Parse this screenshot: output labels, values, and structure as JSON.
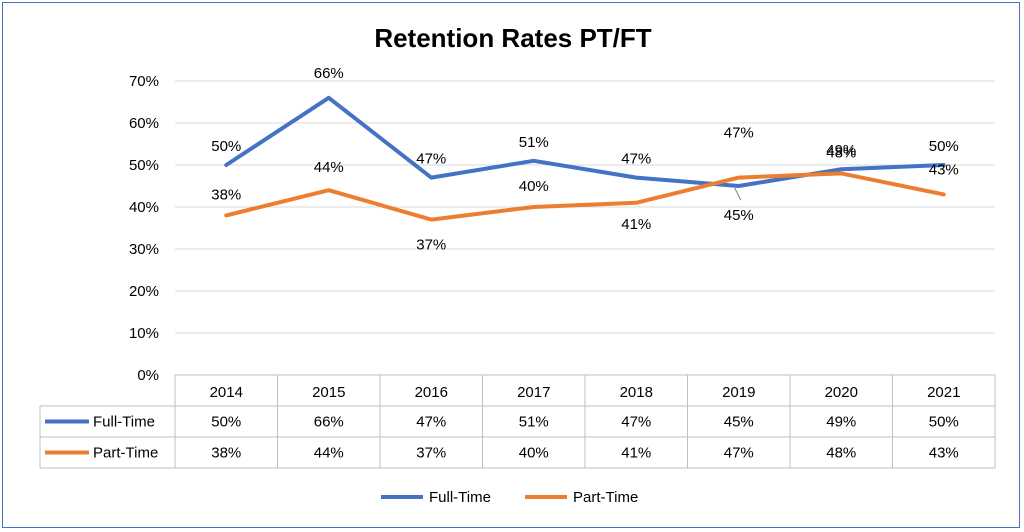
{
  "chart_data": {
    "type": "line",
    "title": "Retention Rates PT/FT",
    "categories": [
      "2014",
      "2015",
      "2016",
      "2017",
      "2018",
      "2019",
      "2020",
      "2021"
    ],
    "ylim": [
      0,
      70
    ],
    "yticks": [
      "0%",
      "10%",
      "20%",
      "30%",
      "40%",
      "50%",
      "60%",
      "70%"
    ],
    "grid": true,
    "legend_position": "bottom",
    "data_table": true,
    "series": [
      {
        "name": "Full-Time",
        "color": "#4472c4",
        "values": [
          50,
          66,
          47,
          51,
          47,
          45,
          49,
          50
        ],
        "labels": [
          "50%",
          "66%",
          "47%",
          "51%",
          "47%",
          "45%",
          "49%",
          "50%"
        ]
      },
      {
        "name": "Part-Time",
        "color": "#ed7d31",
        "values": [
          38,
          44,
          37,
          40,
          41,
          47,
          48,
          43
        ],
        "labels": [
          "38%",
          "44%",
          "37%",
          "40%",
          "41%",
          "47%",
          "48%",
          "43%"
        ]
      }
    ]
  }
}
